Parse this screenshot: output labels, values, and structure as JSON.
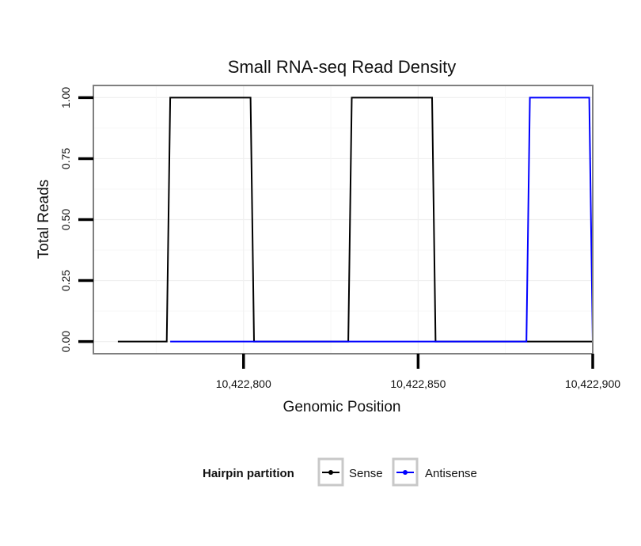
{
  "chart_data": {
    "type": "line",
    "title": "Small RNA-seq Read Density",
    "xlabel": "Genomic Position",
    "ylabel": "Total Reads",
    "xlim": [
      10422757,
      10422900
    ],
    "ylim": [
      -0.05,
      1.05
    ],
    "x_ticks": [
      10422800,
      10422850,
      10422900
    ],
    "x_tick_labels": [
      "10,422,800",
      "10,422,850",
      "10,422,900"
    ],
    "y_ticks": [
      0,
      0.25,
      0.5,
      0.75,
      1
    ],
    "y_tick_labels": [
      "0.00",
      "0.25",
      "0.50",
      "0.75",
      "1.00"
    ],
    "grid": true,
    "legend": {
      "title": "Hairpin partition",
      "position": "bottom",
      "entries": [
        "Sense",
        "Antisense"
      ]
    },
    "series": [
      {
        "name": "Sense",
        "color": "#000000",
        "x": [
          10422764,
          10422778,
          10422779,
          10422802,
          10422803,
          10422830,
          10422831,
          10422854,
          10422855,
          10422900
        ],
        "y": [
          0,
          0,
          1,
          1,
          0,
          0,
          1,
          1,
          0,
          0
        ]
      },
      {
        "name": "Antisense",
        "color": "#0000ff",
        "x": [
          10422779,
          10422802,
          10422831,
          10422854,
          10422881,
          10422882,
          10422899,
          10422900
        ],
        "y": [
          0,
          0,
          0,
          0,
          0,
          1,
          1,
          0
        ]
      }
    ]
  }
}
